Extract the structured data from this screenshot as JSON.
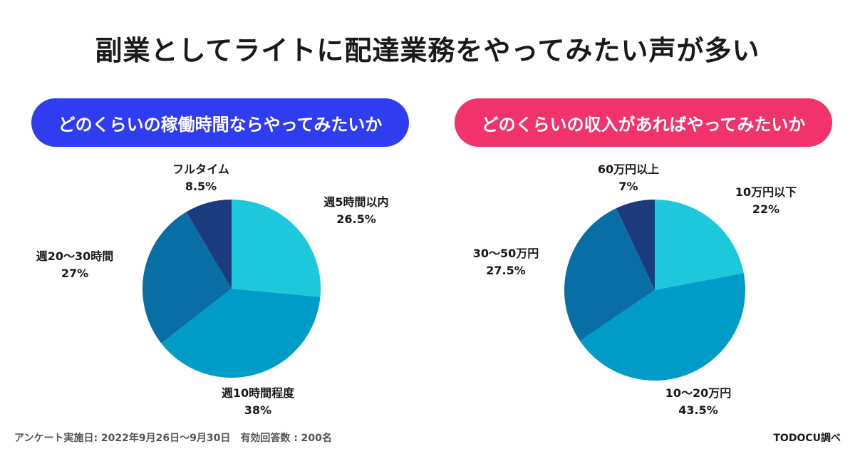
{
  "title": "副業としてライトに配達業務をやってみたい声が多い",
  "colors": {
    "left_pill": "#2f3cf0",
    "right_pill": "#f2336b",
    "slice_light": "#1ec8dc",
    "slice_mid": "#009cc8",
    "slice_dark": "#0a6ea6",
    "slice_navy": "#1c3a7e"
  },
  "chart_data": [
    {
      "type": "pie",
      "title": "どのくらいの稼働時間ならやってみたいか",
      "slices": [
        {
          "label": "週5時間以内",
          "value": 26.5,
          "pct_text": "26.5%",
          "color": "#1ec8dc"
        },
        {
          "label": "週10時間程度",
          "value": 38,
          "pct_text": "38%",
          "color": "#009cc8"
        },
        {
          "label": "週20〜30時間",
          "value": 27,
          "pct_text": "27%",
          "color": "#0a6ea6"
        },
        {
          "label": "フルタイム",
          "value": 8.5,
          "pct_text": "8.5%",
          "color": "#1c3a7e"
        }
      ]
    },
    {
      "type": "pie",
      "title": "どのくらいの収入があればやってみたいか",
      "slices": [
        {
          "label": "10万円以下",
          "value": 22,
          "pct_text": "22%",
          "color": "#1ec8dc"
        },
        {
          "label": "10〜20万円",
          "value": 43.5,
          "pct_text": "43.5%",
          "color": "#009cc8"
        },
        {
          "label": "30〜50万円",
          "value": 27.5,
          "pct_text": "27.5%",
          "color": "#0a6ea6"
        },
        {
          "label": "60万円以上",
          "value": 7,
          "pct_text": "7%",
          "color": "#1c3a7e"
        }
      ]
    }
  ],
  "footer": {
    "survey": "アンケート実施日: 2022年9月26日〜9月30日　有効回答数 : 200名",
    "source": "TODOCU調べ"
  }
}
